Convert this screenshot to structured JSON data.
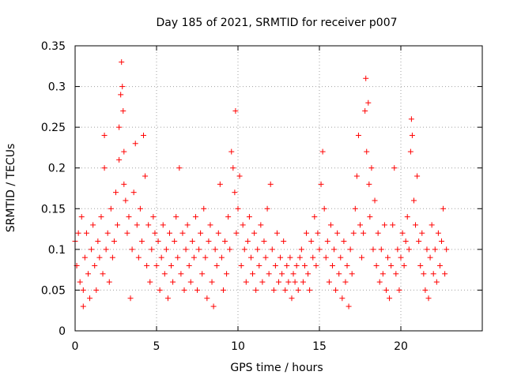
{
  "chart_data": {
    "type": "scatter",
    "title": "Day 185 of 2021, SRMTID for receiver p007",
    "xlabel": "GPS time / hours",
    "ylabel": "SRMTID / TECUs",
    "xlim": [
      0,
      25
    ],
    "ylim": [
      0,
      0.35
    ],
    "x_ticks": [
      0,
      5,
      10,
      15,
      20
    ],
    "x_tick_labels": [
      "0",
      "5",
      "10",
      "15",
      "20"
    ],
    "y_ticks": [
      0,
      0.05,
      0.1,
      0.15,
      0.2,
      0.25,
      0.3,
      0.35
    ],
    "y_tick_labels": [
      "0",
      "0.05",
      "0.1",
      "0.15",
      "0.2",
      "0.25",
      "0.3",
      "0.35"
    ],
    "grid": true,
    "marker": "plus",
    "color": "#ff0000",
    "series": [
      {
        "name": "SRMTID p007",
        "points": [
          [
            0.0,
            0.11
          ],
          [
            0.1,
            0.08
          ],
          [
            0.2,
            0.12
          ],
          [
            0.3,
            0.06
          ],
          [
            0.4,
            0.14
          ],
          [
            0.5,
            0.05
          ],
          [
            0.5,
            0.03
          ],
          [
            0.6,
            0.09
          ],
          [
            0.7,
            0.12
          ],
          [
            0.8,
            0.07
          ],
          [
            0.9,
            0.04
          ],
          [
            1.0,
            0.1
          ],
          [
            1.1,
            0.13
          ],
          [
            1.2,
            0.08
          ],
          [
            1.3,
            0.05
          ],
          [
            1.4,
            0.11
          ],
          [
            1.5,
            0.09
          ],
          [
            1.6,
            0.14
          ],
          [
            1.7,
            0.07
          ],
          [
            1.8,
            0.2
          ],
          [
            1.8,
            0.24
          ],
          [
            1.9,
            0.1
          ],
          [
            2.0,
            0.12
          ],
          [
            2.1,
            0.06
          ],
          [
            2.2,
            0.15
          ],
          [
            2.3,
            0.09
          ],
          [
            2.4,
            0.11
          ],
          [
            2.5,
            0.17
          ],
          [
            2.6,
            0.13
          ],
          [
            2.7,
            0.21
          ],
          [
            2.7,
            0.25
          ],
          [
            2.8,
            0.29
          ],
          [
            2.85,
            0.33
          ],
          [
            2.9,
            0.3
          ],
          [
            2.95,
            0.27
          ],
          [
            3.0,
            0.22
          ],
          [
            3.0,
            0.18
          ],
          [
            3.1,
            0.16
          ],
          [
            3.2,
            0.12
          ],
          [
            3.3,
            0.14
          ],
          [
            3.4,
            0.04
          ],
          [
            3.5,
            0.1
          ],
          [
            3.6,
            0.17
          ],
          [
            3.7,
            0.23
          ],
          [
            3.8,
            0.13
          ],
          [
            3.9,
            0.09
          ],
          [
            4.0,
            0.15
          ],
          [
            4.1,
            0.11
          ],
          [
            4.2,
            0.24
          ],
          [
            4.3,
            0.19
          ],
          [
            4.4,
            0.08
          ],
          [
            4.5,
            0.13
          ],
          [
            4.6,
            0.06
          ],
          [
            4.7,
            0.1
          ],
          [
            4.8,
            0.14
          ],
          [
            4.9,
            0.12
          ],
          [
            5.0,
            0.08
          ],
          [
            5.1,
            0.11
          ],
          [
            5.2,
            0.05
          ],
          [
            5.3,
            0.09
          ],
          [
            5.4,
            0.13
          ],
          [
            5.5,
            0.07
          ],
          [
            5.6,
            0.1
          ],
          [
            5.7,
            0.04
          ],
          [
            5.8,
            0.12
          ],
          [
            5.9,
            0.08
          ],
          [
            6.0,
            0.06
          ],
          [
            6.1,
            0.11
          ],
          [
            6.2,
            0.14
          ],
          [
            6.3,
            0.09
          ],
          [
            6.4,
            0.2
          ],
          [
            6.5,
            0.07
          ],
          [
            6.6,
            0.12
          ],
          [
            6.7,
            0.05
          ],
          [
            6.8,
            0.1
          ],
          [
            6.9,
            0.13
          ],
          [
            7.0,
            0.08
          ],
          [
            7.1,
            0.06
          ],
          [
            7.2,
            0.11
          ],
          [
            7.3,
            0.09
          ],
          [
            7.4,
            0.14
          ],
          [
            7.5,
            0.05
          ],
          [
            7.6,
            0.1
          ],
          [
            7.7,
            0.12
          ],
          [
            7.8,
            0.07
          ],
          [
            7.9,
            0.15
          ],
          [
            8.0,
            0.09
          ],
          [
            8.1,
            0.04
          ],
          [
            8.2,
            0.11
          ],
          [
            8.3,
            0.13
          ],
          [
            8.4,
            0.06
          ],
          [
            8.5,
            0.03
          ],
          [
            8.6,
            0.1
          ],
          [
            8.7,
            0.08
          ],
          [
            8.8,
            0.12
          ],
          [
            8.9,
            0.18
          ],
          [
            9.0,
            0.09
          ],
          [
            9.1,
            0.05
          ],
          [
            9.2,
            0.11
          ],
          [
            9.3,
            0.07
          ],
          [
            9.4,
            0.14
          ],
          [
            9.5,
            0.1
          ],
          [
            9.6,
            0.22
          ],
          [
            9.7,
            0.2
          ],
          [
            9.8,
            0.17
          ],
          [
            9.85,
            0.27
          ],
          [
            9.9,
            0.12
          ],
          [
            10.0,
            0.15
          ],
          [
            10.1,
            0.19
          ],
          [
            10.2,
            0.08
          ],
          [
            10.3,
            0.13
          ],
          [
            10.4,
            0.1
          ],
          [
            10.5,
            0.06
          ],
          [
            10.6,
            0.11
          ],
          [
            10.7,
            0.14
          ],
          [
            10.8,
            0.09
          ],
          [
            10.9,
            0.07
          ],
          [
            11.0,
            0.12
          ],
          [
            11.1,
            0.05
          ],
          [
            11.2,
            0.1
          ],
          [
            11.3,
            0.08
          ],
          [
            11.4,
            0.13
          ],
          [
            11.5,
            0.06
          ],
          [
            11.6,
            0.11
          ],
          [
            11.7,
            0.09
          ],
          [
            11.8,
            0.15
          ],
          [
            11.9,
            0.07
          ],
          [
            12.0,
            0.18
          ],
          [
            12.1,
            0.1
          ],
          [
            12.2,
            0.05
          ],
          [
            12.3,
            0.08
          ],
          [
            12.4,
            0.12
          ],
          [
            12.5,
            0.06
          ],
          [
            12.6,
            0.09
          ],
          [
            12.7,
            0.07
          ],
          [
            12.8,
            0.11
          ],
          [
            12.9,
            0.05
          ],
          [
            13.0,
            0.08
          ],
          [
            13.1,
            0.06
          ],
          [
            13.2,
            0.09
          ],
          [
            13.3,
            0.04
          ],
          [
            13.4,
            0.07
          ],
          [
            13.5,
            0.06
          ],
          [
            13.6,
            0.08
          ],
          [
            13.7,
            0.05
          ],
          [
            13.8,
            0.09
          ],
          [
            13.9,
            0.1
          ],
          [
            14.0,
            0.06
          ],
          [
            14.1,
            0.08
          ],
          [
            14.2,
            0.12
          ],
          [
            14.3,
            0.07
          ],
          [
            14.4,
            0.05
          ],
          [
            14.5,
            0.11
          ],
          [
            14.6,
            0.09
          ],
          [
            14.7,
            0.14
          ],
          [
            14.8,
            0.08
          ],
          [
            14.9,
            0.12
          ],
          [
            15.0,
            0.1
          ],
          [
            15.1,
            0.18
          ],
          [
            15.2,
            0.22
          ],
          [
            15.3,
            0.15
          ],
          [
            15.4,
            0.09
          ],
          [
            15.5,
            0.11
          ],
          [
            15.6,
            0.06
          ],
          [
            15.7,
            0.13
          ],
          [
            15.8,
            0.08
          ],
          [
            15.9,
            0.1
          ],
          [
            16.0,
            0.05
          ],
          [
            16.1,
            0.12
          ],
          [
            16.2,
            0.07
          ],
          [
            16.3,
            0.09
          ],
          [
            16.4,
            0.04
          ],
          [
            16.5,
            0.11
          ],
          [
            16.6,
            0.06
          ],
          [
            16.7,
            0.08
          ],
          [
            16.8,
            0.03
          ],
          [
            16.9,
            0.1
          ],
          [
            17.0,
            0.07
          ],
          [
            17.1,
            0.12
          ],
          [
            17.2,
            0.15
          ],
          [
            17.3,
            0.19
          ],
          [
            17.4,
            0.24
          ],
          [
            17.5,
            0.13
          ],
          [
            17.6,
            0.09
          ],
          [
            17.7,
            0.12
          ],
          [
            17.8,
            0.27
          ],
          [
            17.85,
            0.31
          ],
          [
            17.9,
            0.22
          ],
          [
            18.0,
            0.28
          ],
          [
            18.05,
            0.18
          ],
          [
            18.1,
            0.14
          ],
          [
            18.2,
            0.2
          ],
          [
            18.3,
            0.1
          ],
          [
            18.4,
            0.16
          ],
          [
            18.5,
            0.08
          ],
          [
            18.6,
            0.12
          ],
          [
            18.7,
            0.06
          ],
          [
            18.8,
            0.1
          ],
          [
            18.9,
            0.07
          ],
          [
            19.0,
            0.13
          ],
          [
            19.1,
            0.05
          ],
          [
            19.2,
            0.09
          ],
          [
            19.3,
            0.04
          ],
          [
            19.4,
            0.08
          ],
          [
            19.5,
            0.13
          ],
          [
            19.6,
            0.2
          ],
          [
            19.7,
            0.07
          ],
          [
            19.8,
            0.1
          ],
          [
            19.9,
            0.05
          ],
          [
            20.0,
            0.09
          ],
          [
            20.1,
            0.12
          ],
          [
            20.2,
            0.08
          ],
          [
            20.3,
            0.11
          ],
          [
            20.4,
            0.14
          ],
          [
            20.5,
            0.1
          ],
          [
            20.6,
            0.22
          ],
          [
            20.65,
            0.26
          ],
          [
            20.7,
            0.24
          ],
          [
            20.8,
            0.16
          ],
          [
            20.9,
            0.13
          ],
          [
            21.0,
            0.19
          ],
          [
            21.1,
            0.11
          ],
          [
            21.2,
            0.08
          ],
          [
            21.3,
            0.12
          ],
          [
            21.4,
            0.07
          ],
          [
            21.5,
            0.05
          ],
          [
            21.6,
            0.1
          ],
          [
            21.7,
            0.04
          ],
          [
            21.8,
            0.09
          ],
          [
            21.9,
            0.13
          ],
          [
            22.0,
            0.07
          ],
          [
            22.1,
            0.1
          ],
          [
            22.2,
            0.06
          ],
          [
            22.3,
            0.12
          ],
          [
            22.4,
            0.08
          ],
          [
            22.5,
            0.11
          ],
          [
            22.6,
            0.15
          ],
          [
            22.7,
            0.07
          ],
          [
            22.8,
            0.1
          ]
        ]
      }
    ]
  }
}
